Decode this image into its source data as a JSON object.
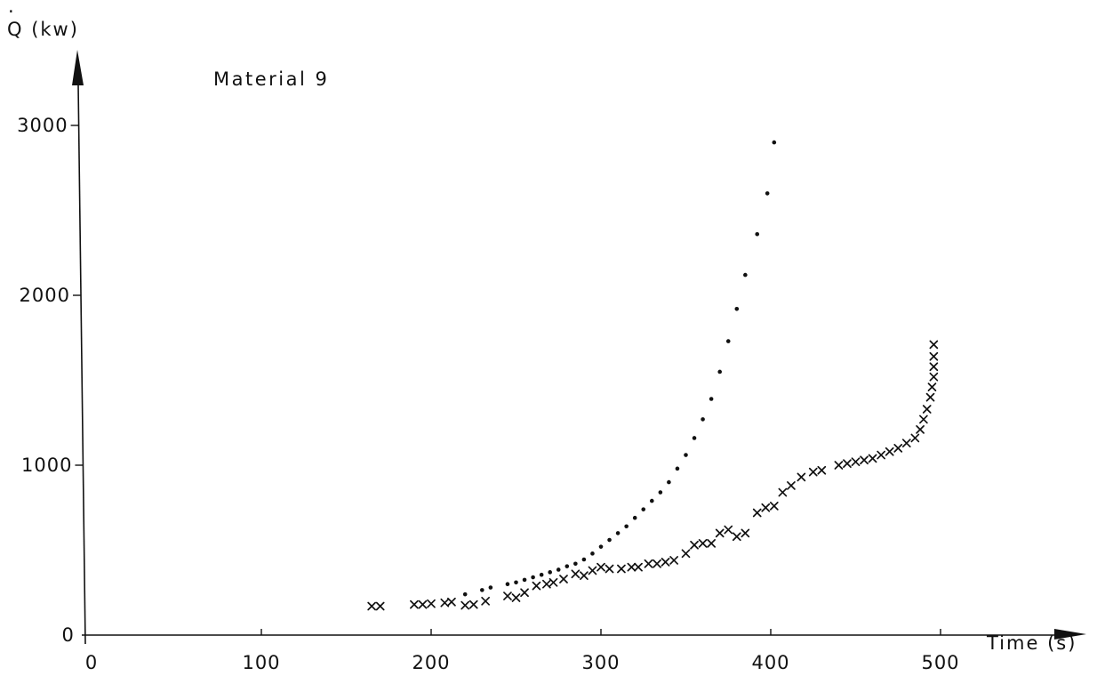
{
  "chart_data": {
    "type": "scatter",
    "title": "Material 9",
    "xlabel": "Time (s)",
    "ylabel": "Q (kw)",
    "ylabel_dot": "·",
    "xlim": [
      0,
      550
    ],
    "ylim": [
      0,
      3300
    ],
    "x_ticks": [
      0,
      100,
      200,
      300,
      400,
      500
    ],
    "x_tick_labels": [
      "0",
      "100",
      "200",
      "300",
      "400",
      "500"
    ],
    "y_ticks": [
      0,
      1000,
      2000,
      3000
    ],
    "y_tick_labels": [
      "0",
      "1000",
      "2000",
      "3000"
    ],
    "grid": false,
    "legend": "none",
    "series": [
      {
        "marker": "dot",
        "points": [
          [
            220,
            240
          ],
          [
            230,
            265
          ],
          [
            235,
            280
          ],
          [
            245,
            300
          ],
          [
            250,
            310
          ],
          [
            255,
            325
          ],
          [
            260,
            340
          ],
          [
            265,
            355
          ],
          [
            270,
            370
          ],
          [
            275,
            385
          ],
          [
            280,
            405
          ],
          [
            285,
            420
          ],
          [
            290,
            445
          ],
          [
            295,
            480
          ],
          [
            300,
            520
          ],
          [
            305,
            560
          ],
          [
            310,
            600
          ],
          [
            315,
            640
          ],
          [
            320,
            690
          ],
          [
            325,
            740
          ],
          [
            330,
            790
          ],
          [
            335,
            840
          ],
          [
            340,
            900
          ],
          [
            345,
            980
          ],
          [
            350,
            1060
          ],
          [
            355,
            1160
          ],
          [
            360,
            1270
          ],
          [
            365,
            1390
          ],
          [
            370,
            1550
          ],
          [
            375,
            1730
          ],
          [
            380,
            1920
          ],
          [
            385,
            2120
          ],
          [
            392,
            2360
          ],
          [
            398,
            2600
          ],
          [
            402,
            2900
          ]
        ]
      },
      {
        "marker": "x",
        "points": [
          [
            165,
            170
          ],
          [
            170,
            170
          ],
          [
            190,
            180
          ],
          [
            195,
            180
          ],
          [
            200,
            185
          ],
          [
            208,
            190
          ],
          [
            212,
            195
          ],
          [
            220,
            175
          ],
          [
            225,
            180
          ],
          [
            232,
            200
          ],
          [
            245,
            230
          ],
          [
            250,
            220
          ],
          [
            255,
            250
          ],
          [
            262,
            290
          ],
          [
            268,
            300
          ],
          [
            272,
            310
          ],
          [
            278,
            330
          ],
          [
            285,
            360
          ],
          [
            290,
            350
          ],
          [
            295,
            380
          ],
          [
            300,
            400
          ],
          [
            305,
            390
          ],
          [
            312,
            390
          ],
          [
            318,
            400
          ],
          [
            322,
            400
          ],
          [
            328,
            420
          ],
          [
            333,
            420
          ],
          [
            338,
            430
          ],
          [
            343,
            440
          ],
          [
            350,
            480
          ],
          [
            355,
            530
          ],
          [
            360,
            540
          ],
          [
            365,
            540
          ],
          [
            370,
            600
          ],
          [
            375,
            620
          ],
          [
            380,
            580
          ],
          [
            385,
            600
          ],
          [
            392,
            720
          ],
          [
            397,
            750
          ],
          [
            402,
            760
          ],
          [
            407,
            840
          ],
          [
            412,
            880
          ],
          [
            418,
            930
          ],
          [
            425,
            960
          ],
          [
            430,
            970
          ],
          [
            440,
            1000
          ],
          [
            445,
            1010
          ],
          [
            450,
            1020
          ],
          [
            455,
            1030
          ],
          [
            460,
            1040
          ],
          [
            465,
            1060
          ],
          [
            470,
            1080
          ],
          [
            475,
            1100
          ],
          [
            480,
            1130
          ],
          [
            485,
            1160
          ],
          [
            488,
            1210
          ],
          [
            490,
            1270
          ],
          [
            492,
            1330
          ],
          [
            494,
            1400
          ],
          [
            495,
            1460
          ],
          [
            496,
            1520
          ],
          [
            496,
            1580
          ],
          [
            496,
            1640
          ],
          [
            496,
            1710
          ]
        ]
      }
    ]
  }
}
